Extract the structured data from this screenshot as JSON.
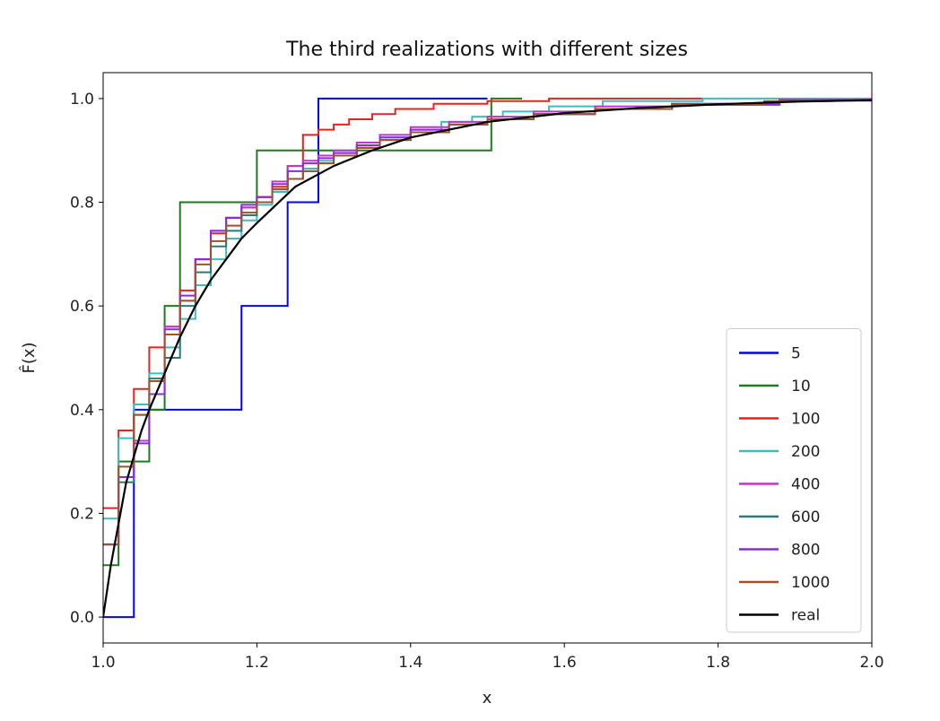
{
  "chart_data": {
    "type": "line",
    "title": "The third realizations with different sizes",
    "xlabel": "x",
    "ylabel": "F̂(x)",
    "xlim": [
      1.0,
      2.0
    ],
    "ylim": [
      -0.05,
      1.05
    ],
    "xticks": [
      "1.0",
      "1.2",
      "1.4",
      "1.6",
      "1.8",
      "2.0"
    ],
    "yticks": [
      "0.0",
      "0.2",
      "0.4",
      "0.6",
      "0.8",
      "1.0"
    ],
    "grid": false,
    "legend_position": "lower-right",
    "series": [
      {
        "name": "5",
        "color": "#0000ff",
        "step": true,
        "x": [
          1.0,
          1.04,
          1.18,
          1.24,
          1.28,
          1.5
        ],
        "y": [
          0.0,
          0.4,
          0.6,
          0.8,
          1.0,
          1.0
        ]
      },
      {
        "name": "10",
        "color": "#1f7a1f",
        "step": true,
        "x": [
          1.0,
          1.02,
          1.06,
          1.08,
          1.1,
          1.2,
          1.29,
          1.505,
          1.545
        ],
        "y": [
          0.1,
          0.3,
          0.4,
          0.6,
          0.8,
          0.9,
          0.9,
          1.0,
          1.0
        ]
      },
      {
        "name": "100",
        "color": "#e8221e",
        "step": true,
        "x": [
          1.0,
          1.02,
          1.04,
          1.06,
          1.08,
          1.1,
          1.12,
          1.14,
          1.16,
          1.18,
          1.2,
          1.22,
          1.24,
          1.26,
          1.28,
          1.3,
          1.32,
          1.35,
          1.38,
          1.43,
          1.5,
          1.58,
          1.78
        ],
        "y": [
          0.21,
          0.36,
          0.44,
          0.52,
          0.56,
          0.63,
          0.69,
          0.74,
          0.77,
          0.79,
          0.81,
          0.83,
          0.87,
          0.93,
          0.94,
          0.95,
          0.96,
          0.97,
          0.98,
          0.99,
          0.995,
          1.0,
          1.0
        ]
      },
      {
        "name": "200",
        "color": "#3cbdbf",
        "step": true,
        "x": [
          1.0,
          1.02,
          1.04,
          1.06,
          1.08,
          1.1,
          1.12,
          1.14,
          1.16,
          1.18,
          1.2,
          1.22,
          1.24,
          1.26,
          1.28,
          1.3,
          1.33,
          1.36,
          1.4,
          1.44,
          1.48,
          1.52,
          1.58,
          1.65,
          1.78,
          2.0
        ],
        "y": [
          0.19,
          0.345,
          0.41,
          0.47,
          0.52,
          0.575,
          0.64,
          0.69,
          0.73,
          0.765,
          0.795,
          0.82,
          0.845,
          0.865,
          0.88,
          0.895,
          0.91,
          0.925,
          0.94,
          0.955,
          0.965,
          0.975,
          0.985,
          0.995,
          1.0,
          1.0
        ]
      },
      {
        "name": "400",
        "color": "#b53cc9",
        "step": true,
        "x": [
          1.0,
          1.02,
          1.04,
          1.06,
          1.08,
          1.1,
          1.12,
          1.14,
          1.16,
          1.18,
          1.2,
          1.22,
          1.24,
          1.26,
          1.28,
          1.3,
          1.33,
          1.36,
          1.4,
          1.45,
          1.5,
          1.56,
          1.64,
          1.74,
          1.88,
          2.0
        ],
        "y": [
          0.14,
          0.27,
          0.34,
          0.43,
          0.56,
          0.61,
          0.69,
          0.745,
          0.77,
          0.79,
          0.81,
          0.84,
          0.87,
          0.88,
          0.89,
          0.9,
          0.915,
          0.93,
          0.945,
          0.955,
          0.965,
          0.975,
          0.985,
          0.99,
          0.998,
          0.998
        ]
      },
      {
        "name": "600",
        "color": "#2b7a82",
        "step": true,
        "x": [
          1.0,
          1.02,
          1.04,
          1.06,
          1.08,
          1.1,
          1.12,
          1.14,
          1.16,
          1.18,
          1.2,
          1.22,
          1.24,
          1.26,
          1.28,
          1.3,
          1.33,
          1.36,
          1.4,
          1.45,
          1.5,
          1.56,
          1.64,
          1.74,
          1.88,
          2.0
        ],
        "y": [
          0.14,
          0.26,
          0.39,
          0.46,
          0.5,
          0.6,
          0.665,
          0.715,
          0.745,
          0.775,
          0.8,
          0.825,
          0.845,
          0.86,
          0.875,
          0.89,
          0.905,
          0.92,
          0.935,
          0.95,
          0.96,
          0.97,
          0.98,
          0.99,
          0.997,
          0.997
        ]
      },
      {
        "name": "800",
        "color": "#8a2be2",
        "step": true,
        "x": [
          1.0,
          1.02,
          1.04,
          1.06,
          1.08,
          1.1,
          1.12,
          1.14,
          1.16,
          1.18,
          1.2,
          1.22,
          1.24,
          1.26,
          1.28,
          1.3,
          1.33,
          1.36,
          1.4,
          1.45,
          1.5,
          1.56,
          1.64,
          1.74,
          1.88,
          2.0
        ],
        "y": [
          0.14,
          0.27,
          0.335,
          0.43,
          0.555,
          0.62,
          0.69,
          0.745,
          0.77,
          0.795,
          0.81,
          0.835,
          0.86,
          0.875,
          0.885,
          0.895,
          0.91,
          0.925,
          0.94,
          0.95,
          0.96,
          0.97,
          0.98,
          0.988,
          0.996,
          0.996
        ]
      },
      {
        "name": "1000",
        "color": "#a0522d",
        "step": true,
        "x": [
          1.0,
          1.02,
          1.04,
          1.06,
          1.08,
          1.1,
          1.12,
          1.14,
          1.16,
          1.18,
          1.2,
          1.22,
          1.24,
          1.26,
          1.28,
          1.3,
          1.33,
          1.36,
          1.4,
          1.45,
          1.5,
          1.56,
          1.64,
          1.74,
          1.86,
          1.95
        ],
        "y": [
          0.14,
          0.29,
          0.39,
          0.455,
          0.545,
          0.61,
          0.68,
          0.725,
          0.755,
          0.78,
          0.8,
          0.825,
          0.845,
          0.86,
          0.875,
          0.89,
          0.905,
          0.92,
          0.935,
          0.95,
          0.96,
          0.97,
          0.98,
          0.988,
          0.995,
          0.995
        ]
      },
      {
        "name": "real",
        "color": "#000000",
        "step": false,
        "x": [
          1.0,
          1.01,
          1.02,
          1.03,
          1.04,
          1.05,
          1.06,
          1.08,
          1.1,
          1.12,
          1.14,
          1.16,
          1.18,
          1.2,
          1.25,
          1.3,
          1.35,
          1.4,
          1.5,
          1.6,
          1.7,
          1.8,
          1.9,
          2.0
        ],
        "y": [
          0.0,
          0.1,
          0.18,
          0.26,
          0.31,
          0.36,
          0.4,
          0.47,
          0.54,
          0.6,
          0.65,
          0.69,
          0.73,
          0.76,
          0.83,
          0.87,
          0.9,
          0.925,
          0.955,
          0.972,
          0.982,
          0.989,
          0.994,
          0.997
        ]
      }
    ]
  }
}
